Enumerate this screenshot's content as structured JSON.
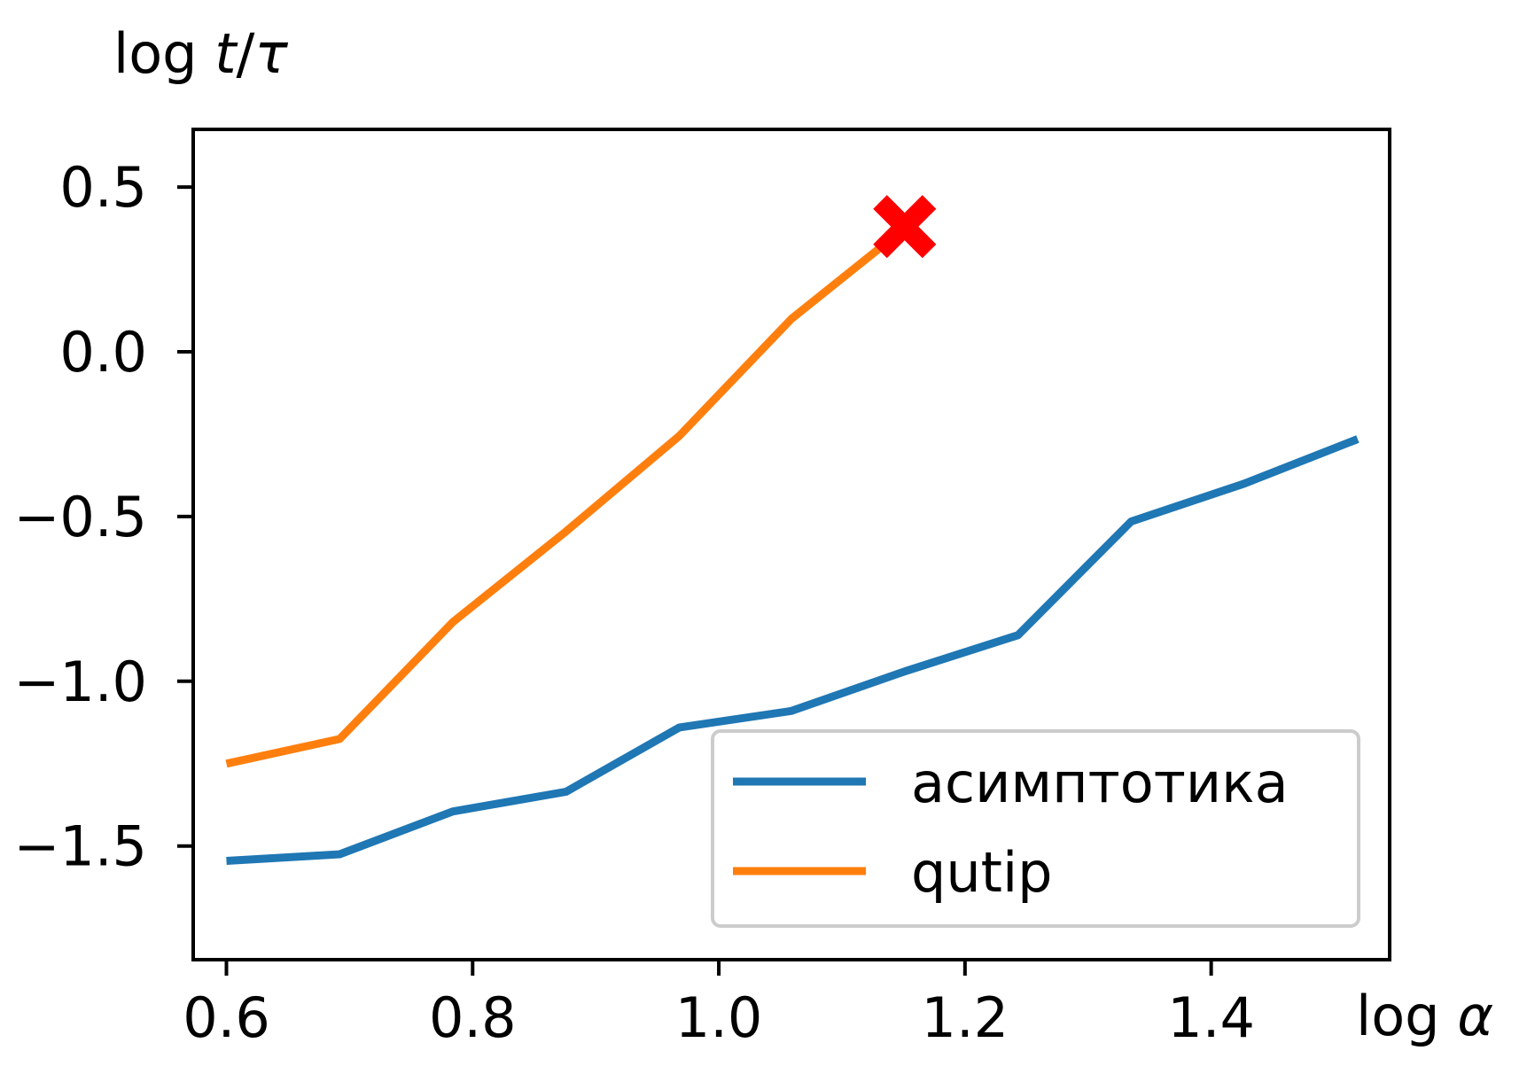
{
  "chart_data": {
    "type": "line",
    "xlabel": "log α",
    "ylabel": "log t/τ",
    "xlim": [
      0.573,
      1.545
    ],
    "ylim": [
      -1.845,
      0.675
    ],
    "xticks": [
      0.6,
      0.8,
      1.0,
      1.2,
      1.4
    ],
    "xtick_labels": [
      "0.6",
      "0.8",
      "1.0",
      "1.2",
      "1.4"
    ],
    "yticks": [
      0.5,
      0.0,
      -0.5,
      -1.0,
      -1.5
    ],
    "ytick_labels": [
      "0.5",
      "0.0",
      "−0.5",
      "−1.0",
      "−1.5"
    ],
    "grid": false,
    "legend_position": "lower-right",
    "series": [
      {
        "name": "асимптотика",
        "color": "#1f77b4",
        "x": [
          0.6,
          0.692,
          0.784,
          0.876,
          0.968,
          1.059,
          1.151,
          1.243,
          1.335,
          1.427,
          1.519
        ],
        "y": [
          -1.545,
          -1.525,
          -1.395,
          -1.335,
          -1.14,
          -1.09,
          -0.97,
          -0.86,
          -0.515,
          -0.4,
          -0.265
        ]
      },
      {
        "name": "qutip",
        "color": "#ff7f0e",
        "x": [
          0.6,
          0.692,
          0.784,
          0.876,
          0.968,
          1.059,
          1.151
        ],
        "y": [
          -1.25,
          -1.175,
          -0.82,
          -0.545,
          -0.255,
          0.1,
          0.375
        ]
      }
    ],
    "markers": [
      {
        "x": 1.151,
        "y": 0.38,
        "symbol": "X",
        "color": "#ff0000"
      }
    ]
  }
}
